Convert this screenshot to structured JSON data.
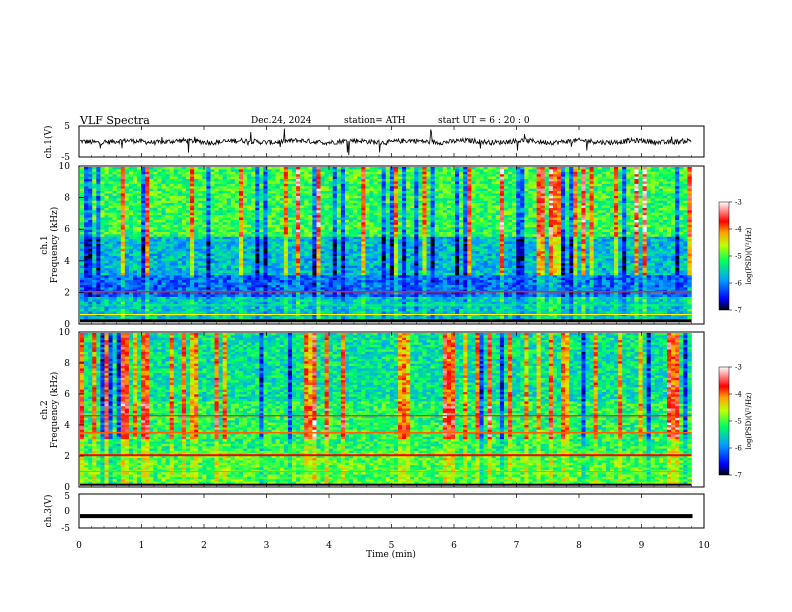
{
  "header": {
    "title": "VLF  Spectra",
    "date": "Dec.24, 2024",
    "station": "station= ATH",
    "start_ut": "start  UT  =    6  : 20 : 0"
  },
  "chart_data": [
    {
      "type": "line",
      "panel": "ch1-waveform",
      "ylabel": "ch.1(V)",
      "ylim": [
        -5,
        5
      ],
      "yticks": [
        "5",
        "-5"
      ],
      "x_range_min": [
        0,
        9.8
      ],
      "description_of_trace": "noisy sferic waveform around 0 V with spikes"
    },
    {
      "type": "heatmap",
      "panel": "ch1-spectrogram",
      "ylabel_line1": "ch.1",
      "ylabel_line2": "Frequency  (kHz)",
      "ylim": [
        0,
        10
      ],
      "yticks": [
        "0",
        "2",
        "4",
        "6",
        "8",
        "10"
      ],
      "colorbar": {
        "label": "log(PSD)(V²/Hz)",
        "ticks": [
          "-3",
          "-4",
          "-5",
          "-6",
          "-7"
        ],
        "range": [
          -7,
          -3
        ]
      }
    },
    {
      "type": "heatmap",
      "panel": "ch2-spectrogram",
      "ylabel_line1": "ch.2",
      "ylabel_line2": "Frequency  (kHz)",
      "ylim": [
        0,
        10
      ],
      "yticks": [
        "0",
        "2",
        "4",
        "6",
        "8",
        "10"
      ],
      "colorbar": {
        "label": "log(PSD)(V²/Hz)",
        "ticks": [
          "-3",
          "-4",
          "-5",
          "-6",
          "-7"
        ],
        "range": [
          -7,
          -3
        ]
      }
    },
    {
      "type": "line",
      "panel": "ch3-waveform",
      "ylabel": "ch.3(V)",
      "ylim": [
        -5,
        5
      ],
      "yticks": [
        "5",
        "0",
        "-5"
      ],
      "trace_level_v": -1.5
    }
  ],
  "x_axis": {
    "label": "Time  (min)",
    "ticks": [
      "0",
      "1",
      "2",
      "3",
      "4",
      "5",
      "6",
      "7",
      "8",
      "9",
      "10"
    ],
    "xlim": [
      0,
      10
    ]
  },
  "colors": {
    "scale": [
      "#000000",
      "#0000ff",
      "#00a0ff",
      "#00e0d0",
      "#00ff40",
      "#c0ff00",
      "#ffff00",
      "#ff8000",
      "#ff0000",
      "#ffffff"
    ]
  }
}
